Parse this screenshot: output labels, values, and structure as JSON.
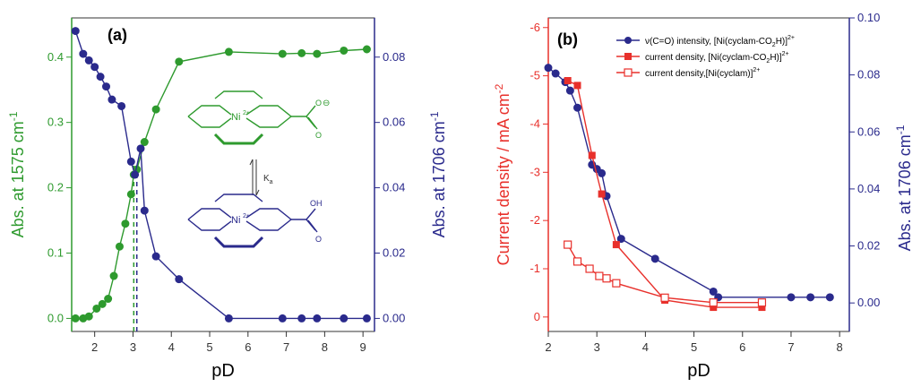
{
  "panels": [
    {
      "id": "a",
      "panel_label": "(a)",
      "xlabel": "pD",
      "ylabel_left": "Abs. at 1575 cm",
      "ylabel_left_sup": "-1",
      "ylabel_right": "Abs. at 1706 cm",
      "ylabel_right_sup": "-1",
      "left_color": "#2e9a2e",
      "right_color": "#2a2a8c",
      "scheme_text": {
        "ni_top": "Ni",
        "ni_bottom": "Ni",
        "ka": "K",
        "ka_sub": "a",
        "oh": "OH",
        "o": "O",
        "ominus": "⊖",
        "charge": "2+",
        "h": "H"
      }
    },
    {
      "id": "b",
      "panel_label": "(b)",
      "xlabel": "pD",
      "ylabel_left": "Current density / mA cm",
      "ylabel_left_sup": "-2",
      "ylabel_right": "Abs. at 1706 cm",
      "ylabel_right_sup": "-1",
      "left_color": "#e8302b",
      "right_color": "#2a2a8c",
      "legend": [
        {
          "text": "ν(C=O) intensity, [Ni(cyclam-CO",
          "sub": "2",
          "tail": "H)]",
          "sup": "2+",
          "marker": "circle",
          "color": "#2a2a8c"
        },
        {
          "text": "current density, [Ni(cyclam-CO",
          "sub": "2",
          "tail": "H)]",
          "sup": "2+",
          "marker": "square",
          "color": "#e8302b"
        },
        {
          "text": "current density,[Ni(cyclam)]",
          "sub": "",
          "tail": "",
          "sup": "2+",
          "marker": "open-square",
          "color": "#e8302b"
        }
      ]
    }
  ],
  "chart_data": [
    {
      "type": "line",
      "panel": "a",
      "xlim": [
        1.4,
        9.3
      ],
      "xticks": [
        2,
        3,
        4,
        5,
        6,
        7,
        8,
        9
      ],
      "ylim_left": [
        -0.02,
        0.46
      ],
      "yticks_left": [
        0.0,
        0.1,
        0.2,
        0.3,
        0.4
      ],
      "ylim_right": [
        -0.004,
        0.092
      ],
      "yticks_right": [
        0.0,
        0.02,
        0.04,
        0.06,
        0.08
      ],
      "vlines": [
        {
          "x": 3.02,
          "color": "#2e9a2e"
        },
        {
          "x": 3.1,
          "color": "#2a2a8c"
        }
      ],
      "series": [
        {
          "axis": "left",
          "marker": "circle",
          "color": "#2e9a2e",
          "x": [
            1.5,
            1.7,
            1.85,
            2.05,
            2.2,
            2.35,
            2.5,
            2.65,
            2.8,
            2.95,
            3.02,
            3.1,
            3.3,
            3.6,
            4.2,
            5.5,
            6.9,
            7.4,
            7.8,
            8.5,
            9.1
          ],
          "y": [
            0.0,
            0.0,
            0.003,
            0.015,
            0.022,
            0.03,
            0.065,
            0.11,
            0.145,
            0.19,
            0.22,
            0.228,
            0.27,
            0.32,
            0.393,
            0.408,
            0.405,
            0.406,
            0.405,
            0.41,
            0.412
          ]
        },
        {
          "axis": "right",
          "marker": "circle",
          "color": "#2a2a8c",
          "x": [
            1.5,
            1.7,
            1.85,
            2.0,
            2.15,
            2.3,
            2.45,
            2.7,
            2.95,
            3.05,
            3.2,
            3.3,
            3.6,
            4.2,
            5.5,
            6.9,
            7.4,
            7.8,
            8.5,
            9.1
          ],
          "y": [
            0.088,
            0.081,
            0.079,
            0.077,
            0.074,
            0.071,
            0.067,
            0.065,
            0.048,
            0.044,
            0.052,
            0.033,
            0.019,
            0.012,
            0.0,
            0.0,
            0.0,
            0.0,
            0.0,
            0.0
          ]
        }
      ]
    },
    {
      "type": "line",
      "panel": "b",
      "xlim": [
        2.0,
        8.2
      ],
      "xticks": [
        2,
        3,
        4,
        5,
        6,
        7,
        8
      ],
      "ylim_left": [
        0.3,
        -6.2
      ],
      "yticks_left": [
        0,
        -1,
        -2,
        -3,
        -4,
        -5,
        -6
      ],
      "ylim_right": [
        -0.01,
        0.1
      ],
      "yticks_right": [
        0.0,
        0.02,
        0.04,
        0.06,
        0.08,
        0.1
      ],
      "series": [
        {
          "axis": "right",
          "marker": "circle",
          "color": "#2a2a8c",
          "x": [
            2.0,
            2.15,
            2.35,
            2.45,
            2.6,
            2.9,
            3.0,
            3.1,
            3.2,
            3.5,
            4.2,
            5.4,
            5.5,
            7.0,
            7.4,
            7.8
          ],
          "y": [
            0.0825,
            0.0805,
            0.0775,
            0.0745,
            0.0685,
            0.0485,
            0.047,
            0.0455,
            0.0375,
            0.0225,
            0.0155,
            0.004,
            0.002,
            0.002,
            0.002,
            0.002
          ]
        },
        {
          "axis": "left",
          "marker": "square",
          "color": "#e8302b",
          "x": [
            2.4,
            2.6,
            2.9,
            3.1,
            3.4,
            4.4,
            5.4,
            6.4
          ],
          "y": [
            -4.9,
            -4.8,
            -3.35,
            -2.55,
            -1.5,
            -0.35,
            -0.2,
            -0.2
          ]
        },
        {
          "axis": "left",
          "marker": "open-square",
          "color": "#e8302b",
          "x": [
            2.4,
            2.6,
            2.85,
            3.05,
            3.2,
            3.4,
            4.4,
            5.4,
            6.4
          ],
          "y": [
            -1.5,
            -1.15,
            -1.0,
            -0.85,
            -0.8,
            -0.7,
            -0.4,
            -0.3,
            -0.3
          ]
        }
      ]
    }
  ]
}
